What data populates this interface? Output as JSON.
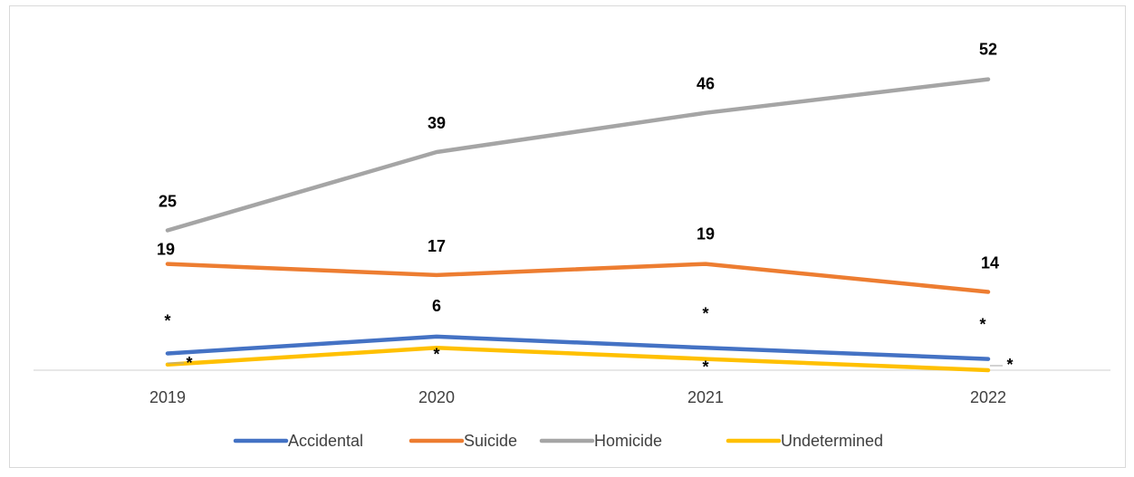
{
  "chart_data": {
    "type": "line",
    "categories": [
      "2019",
      "2020",
      "2021",
      "2022"
    ],
    "series": [
      {
        "name": "Accidental",
        "color": "#4472C4",
        "values": [
          3,
          6,
          4,
          2
        ],
        "labels": [
          "*",
          "6",
          "*",
          "*"
        ]
      },
      {
        "name": "Suicide",
        "color": "#ED7D31",
        "values": [
          19,
          17,
          19,
          14
        ],
        "labels": [
          "19",
          "17",
          "19",
          "14"
        ]
      },
      {
        "name": "Homicide",
        "color": "#A5A5A5",
        "values": [
          25,
          39,
          46,
          52
        ],
        "labels": [
          "25",
          "39",
          "46",
          "52"
        ]
      },
      {
        "name": "Undetermined",
        "color": "#FFC000",
        "values": [
          1,
          4,
          2,
          0
        ],
        "labels": [
          "*",
          "*",
          "*",
          "*"
        ]
      }
    ],
    "ylim": [
      0,
      60
    ],
    "grid": false,
    "legend": "bottom",
    "title": "",
    "xlabel": "",
    "ylabel": ""
  }
}
